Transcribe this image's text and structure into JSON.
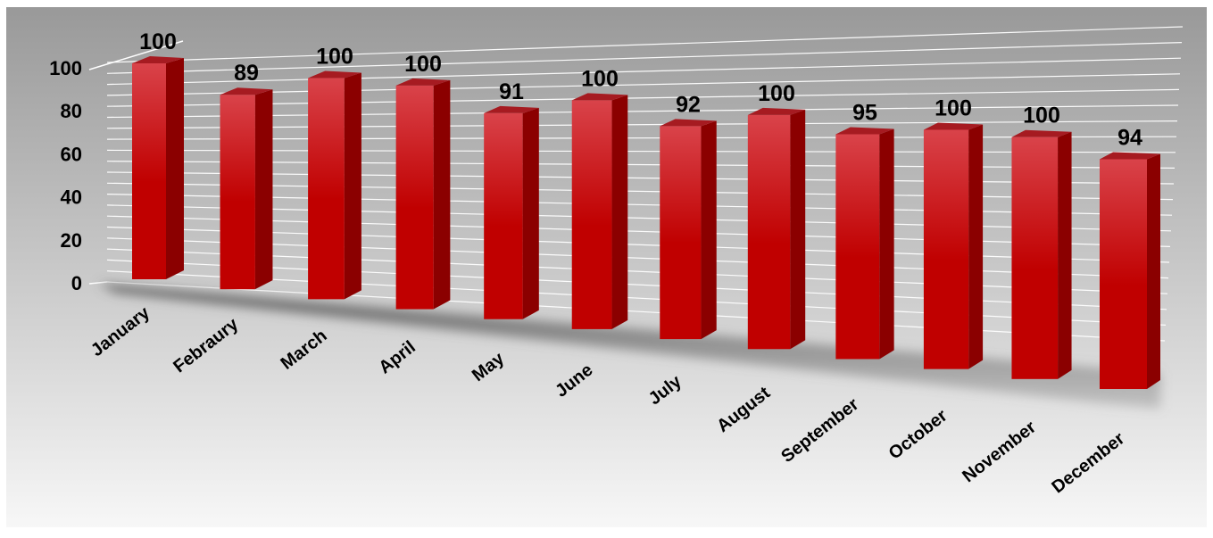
{
  "chart_data": {
    "type": "bar",
    "title": "",
    "xlabel": "",
    "ylabel": "",
    "categories": [
      "January",
      "Febraury",
      "March",
      "April",
      "May",
      "June",
      "July",
      "August",
      "September",
      "October",
      "November",
      "December"
    ],
    "values": [
      100,
      89,
      100,
      100,
      91,
      100,
      92,
      100,
      95,
      100,
      100,
      94
    ],
    "ylim": [
      0,
      100
    ],
    "yticks": [
      "0",
      "20",
      "40",
      "60",
      "80",
      "100"
    ],
    "grid": true,
    "legend": "none",
    "perspective": "3d",
    "colors": {
      "bar_front_light": "#d9434a",
      "bar_front_dark": "#c00000",
      "bar_side": "#8b0000",
      "bar_top": "#a61b21",
      "background_top": "#999999",
      "background_bottom": "#f7f7f7",
      "grid": "#ffffff"
    }
  }
}
